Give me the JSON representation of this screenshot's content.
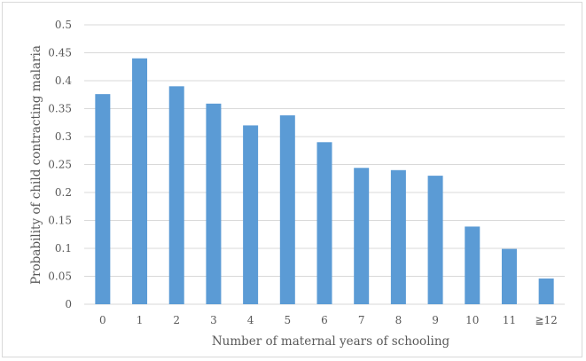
{
  "chart_data": {
    "type": "bar",
    "title": "",
    "xlabel": "Number of maternal years of schooling",
    "ylabel": "Probability of child contracting malaria",
    "categories": [
      "0",
      "1",
      "2",
      "3",
      "4",
      "5",
      "6",
      "7",
      "8",
      "9",
      "10",
      "11",
      "≧12"
    ],
    "values": [
      0.376,
      0.44,
      0.39,
      0.359,
      0.32,
      0.338,
      0.29,
      0.244,
      0.24,
      0.23,
      0.139,
      0.099,
      0.046
    ],
    "ylim": [
      0,
      0.5
    ],
    "yticks": [
      "0",
      "0.05",
      "0.1",
      "0.15",
      "0.2",
      "0.25",
      "0.3",
      "0.35",
      "0.4",
      "0.45",
      "0.5"
    ],
    "grid": true,
    "legend": "none",
    "bar_color": "#5b9bd5",
    "grid_color": "#d9d9d9"
  }
}
